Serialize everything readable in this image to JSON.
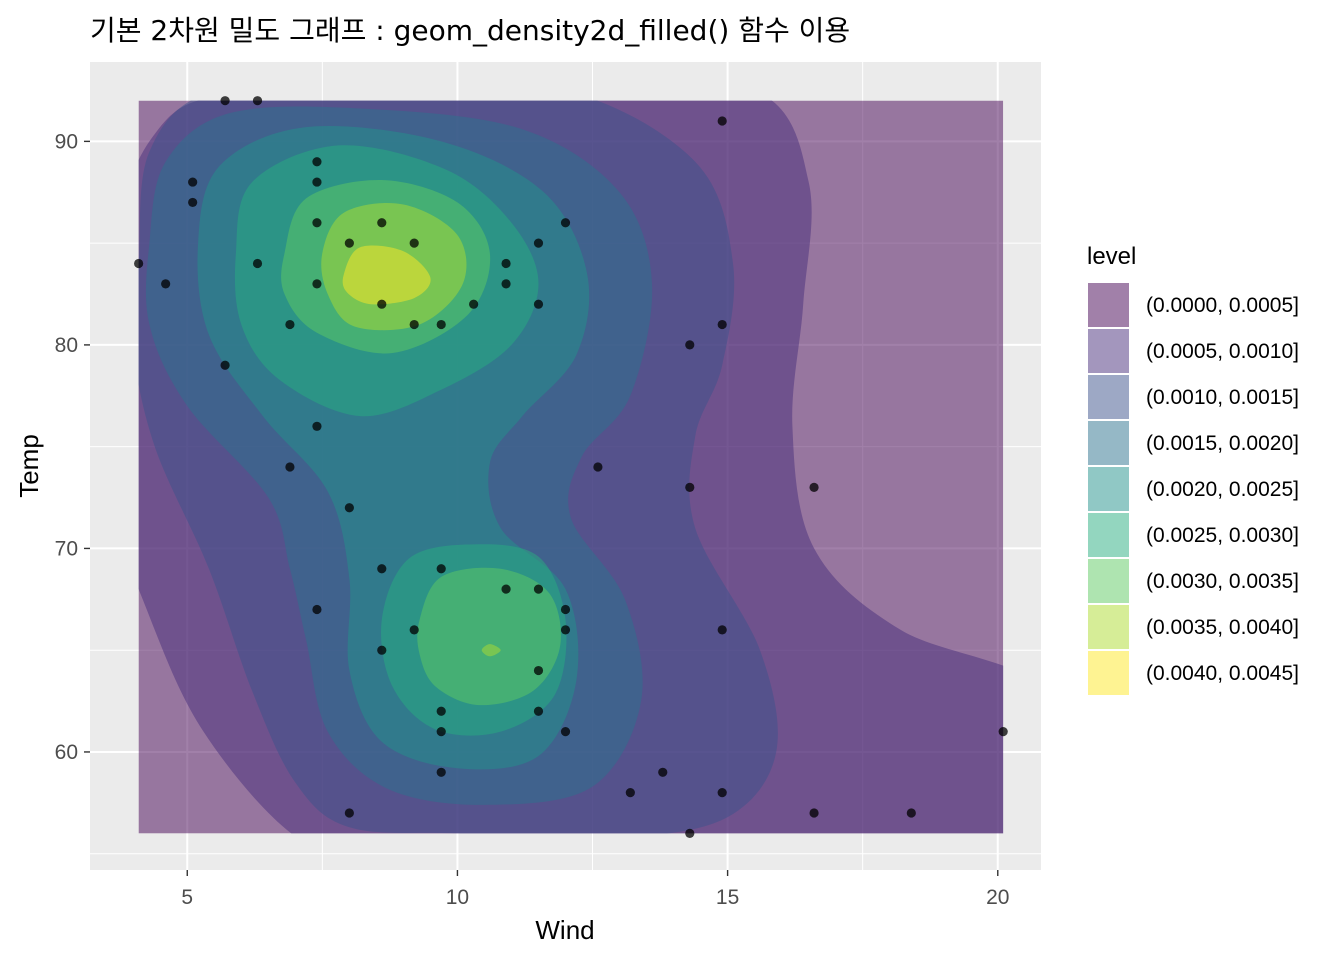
{
  "chart_data": {
    "type": "density2d_filled",
    "title": "기본 2차원 밀도 그래프 : geom_density2d_filled() 함수 이용",
    "xlabel": "Wind",
    "ylabel": "Temp",
    "xlim": [
      3.2,
      20.8
    ],
    "ylim": [
      54.2,
      93.9
    ],
    "x_ticks": [
      5,
      10,
      15,
      20
    ],
    "y_ticks": [
      60,
      70,
      80,
      90
    ],
    "x_tick_labels": [
      "5",
      "10",
      "15",
      "20"
    ],
    "y_tick_labels": [
      "60",
      "70",
      "80",
      "90"
    ],
    "density_region": {
      "x": [
        4.1,
        20.1
      ],
      "y": [
        56,
        92
      ]
    },
    "grid": true,
    "legend": {
      "title": "level",
      "placement": "right",
      "entries": [
        {
          "label": "(0.0000, 0.0005]",
          "color": "#440154"
        },
        {
          "label": "(0.0005, 0.0010]",
          "color": "#472d7b"
        },
        {
          "label": "(0.0010, 0.0015]",
          "color": "#3b528b"
        },
        {
          "label": "(0.0015, 0.0020]",
          "color": "#2c728e"
        },
        {
          "label": "(0.0020, 0.0025]",
          "color": "#21918c"
        },
        {
          "label": "(0.0025, 0.0030]",
          "color": "#28ae80"
        },
        {
          "label": "(0.0030, 0.0035]",
          "color": "#5ec962"
        },
        {
          "label": "(0.0035, 0.0040]",
          "color": "#addc30"
        },
        {
          "label": "(0.0040, 0.0045]",
          "color": "#fde725"
        }
      ]
    },
    "fill_alpha": 0.5,
    "density_peaks": [
      {
        "x": 8.4,
        "y": 83,
        "level": 9
      },
      {
        "x": 10.6,
        "y": 65,
        "level": 7
      }
    ],
    "points": [
      {
        "x": 5.7,
        "y": 92
      },
      {
        "x": 6.3,
        "y": 92
      },
      {
        "x": 14.9,
        "y": 91
      },
      {
        "x": 7.4,
        "y": 89
      },
      {
        "x": 5.1,
        "y": 88
      },
      {
        "x": 7.4,
        "y": 88
      },
      {
        "x": 5.1,
        "y": 87
      },
      {
        "x": 7.4,
        "y": 86
      },
      {
        "x": 8.6,
        "y": 86
      },
      {
        "x": 12.0,
        "y": 86
      },
      {
        "x": 8.0,
        "y": 85
      },
      {
        "x": 9.2,
        "y": 85
      },
      {
        "x": 11.5,
        "y": 85
      },
      {
        "x": 4.1,
        "y": 84
      },
      {
        "x": 6.3,
        "y": 84
      },
      {
        "x": 10.9,
        "y": 84
      },
      {
        "x": 4.6,
        "y": 83
      },
      {
        "x": 7.4,
        "y": 83
      },
      {
        "x": 10.9,
        "y": 83
      },
      {
        "x": 8.6,
        "y": 82
      },
      {
        "x": 10.3,
        "y": 82
      },
      {
        "x": 11.5,
        "y": 82
      },
      {
        "x": 6.9,
        "y": 81
      },
      {
        "x": 9.2,
        "y": 81
      },
      {
        "x": 9.7,
        "y": 81
      },
      {
        "x": 14.9,
        "y": 81
      },
      {
        "x": 14.3,
        "y": 80
      },
      {
        "x": 5.7,
        "y": 79
      },
      {
        "x": 7.4,
        "y": 76
      },
      {
        "x": 6.9,
        "y": 74
      },
      {
        "x": 12.6,
        "y": 74
      },
      {
        "x": 14.3,
        "y": 73
      },
      {
        "x": 16.6,
        "y": 73
      },
      {
        "x": 8.0,
        "y": 72
      },
      {
        "x": 8.6,
        "y": 69
      },
      {
        "x": 9.7,
        "y": 69
      },
      {
        "x": 10.9,
        "y": 68
      },
      {
        "x": 11.5,
        "y": 68
      },
      {
        "x": 7.4,
        "y": 67
      },
      {
        "x": 12.0,
        "y": 67
      },
      {
        "x": 9.2,
        "y": 66
      },
      {
        "x": 12.0,
        "y": 66
      },
      {
        "x": 14.9,
        "y": 66
      },
      {
        "x": 8.6,
        "y": 65
      },
      {
        "x": 11.5,
        "y": 64
      },
      {
        "x": 9.7,
        "y": 62
      },
      {
        "x": 11.5,
        "y": 62
      },
      {
        "x": 9.7,
        "y": 61
      },
      {
        "x": 12.0,
        "y": 61
      },
      {
        "x": 20.1,
        "y": 61
      },
      {
        "x": 9.7,
        "y": 59
      },
      {
        "x": 13.8,
        "y": 59
      },
      {
        "x": 13.2,
        "y": 58
      },
      {
        "x": 14.9,
        "y": 58
      },
      {
        "x": 8.0,
        "y": 57
      },
      {
        "x": 16.6,
        "y": 57
      },
      {
        "x": 18.4,
        "y": 57
      },
      {
        "x": 14.3,
        "y": 56
      }
    ]
  }
}
